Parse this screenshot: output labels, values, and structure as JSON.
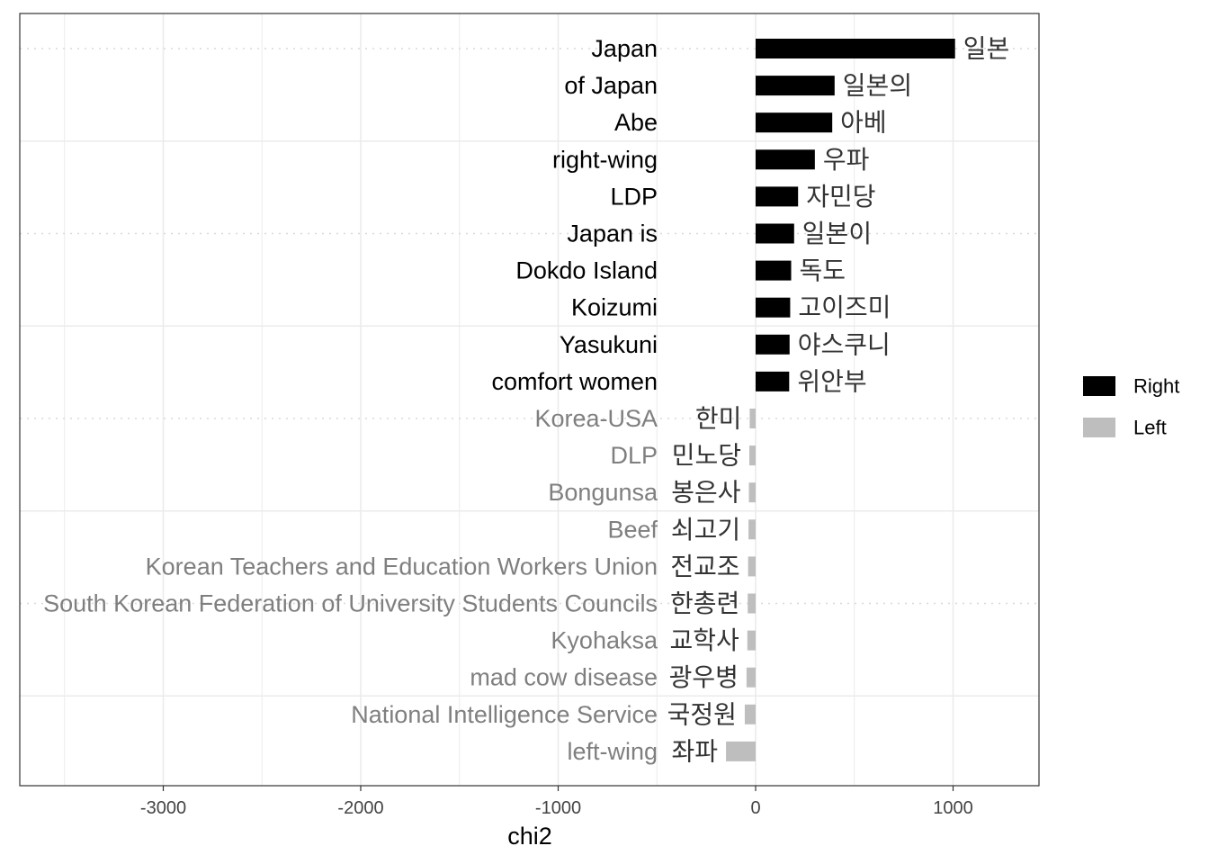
{
  "chart_data": {
    "type": "bar",
    "orientation": "horizontal",
    "xlabel": "chi2",
    "ylabel": "",
    "xlim": [
      -3700,
      1430
    ],
    "x_ticks": [
      -3000,
      -2000,
      -1000,
      0,
      1000
    ],
    "x_tick_labels": [
      "-3000",
      "-2000",
      "-1000",
      "0",
      "1000"
    ],
    "grid": true,
    "legend_position": "right",
    "legend": [
      {
        "label": "Right",
        "color": "#000000"
      },
      {
        "label": "Left",
        "color": "#bebebe"
      }
    ],
    "label_colors": {
      "Right": "#000000",
      "Left": "#7f7f7f"
    },
    "bars": [
      {
        "english": "Japan",
        "korean": "일본",
        "value": 1010,
        "group": "Right"
      },
      {
        "english": "of Japan",
        "korean": "일본의",
        "value": 400,
        "group": "Right"
      },
      {
        "english": "Abe",
        "korean": "아베",
        "value": 388,
        "group": "Right"
      },
      {
        "english": "right-wing",
        "korean": "우파",
        "value": 300,
        "group": "Right"
      },
      {
        "english": "LDP",
        "korean": "자민당",
        "value": 215,
        "group": "Right"
      },
      {
        "english": "Japan is",
        "korean": "일본이",
        "value": 195,
        "group": "Right"
      },
      {
        "english": "Dokdo Island",
        "korean": "독도",
        "value": 180,
        "group": "Right"
      },
      {
        "english": "Koizumi",
        "korean": "고이즈미",
        "value": 175,
        "group": "Right"
      },
      {
        "english": "Yasukuni",
        "korean": "야스쿠니",
        "value": 172,
        "group": "Right"
      },
      {
        "english": "comfort women",
        "korean": "위안부",
        "value": 170,
        "group": "Right"
      },
      {
        "english": "Korea-USA",
        "korean": "한미",
        "value": -30,
        "group": "Left"
      },
      {
        "english": "DLP",
        "korean": "민노당",
        "value": -32,
        "group": "Left"
      },
      {
        "english": "Bongunsa",
        "korean": "봉은사",
        "value": -34,
        "group": "Left"
      },
      {
        "english": "Beef",
        "korean": "쇠고기",
        "value": -36,
        "group": "Left"
      },
      {
        "english": "Korean Teachers and Education Workers Union",
        "korean": "전교조",
        "value": -38,
        "group": "Left"
      },
      {
        "english": "South Korean Federation of University Students Councils",
        "korean": "한총련",
        "value": -40,
        "group": "Left"
      },
      {
        "english": "Kyohaksa",
        "korean": "교학사",
        "value": -42,
        "group": "Left"
      },
      {
        "english": "mad cow disease",
        "korean": "광우병",
        "value": -46,
        "group": "Left"
      },
      {
        "english": "National Intelligence Service",
        "korean": "국정원",
        "value": -55,
        "group": "Left"
      },
      {
        "english": "left-wing",
        "korean": "좌파",
        "value": -150,
        "group": "Left"
      }
    ]
  }
}
